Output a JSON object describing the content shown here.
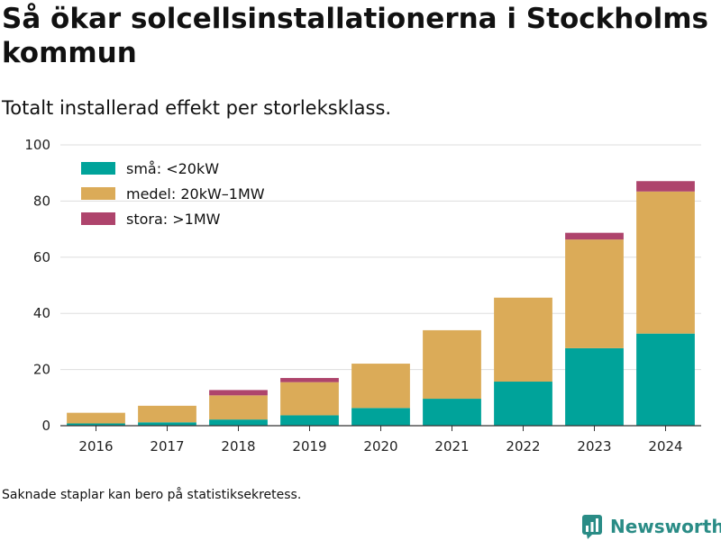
{
  "title": "Så ökar solcellsinstallationerna i Stockholms kommun",
  "subtitle": "Totalt installerad effekt per storleksklass.",
  "footnote": "Saknade staplar kan bero på statistiksekretess.",
  "brand": {
    "name": "Newsworthy",
    "icon": "newsworthy-logo-icon"
  },
  "colors": {
    "sma": "#00a39a",
    "medel": "#dbab58",
    "stora": "#ae446c",
    "grid": "#dddddd",
    "axis": "#333333"
  },
  "chart_data": {
    "type": "bar",
    "stacked": true,
    "categories": [
      "2016",
      "2017",
      "2018",
      "2019",
      "2020",
      "2021",
      "2022",
      "2023",
      "2024"
    ],
    "series": [
      {
        "name": "små: <20kW",
        "color": "#00a39a",
        "values": [
          0.8,
          1.2,
          2.2,
          3.7,
          6.3,
          9.6,
          15.7,
          27.6,
          32.8
        ]
      },
      {
        "name": "medel: 20kW–1MW",
        "color": "#dbab58",
        "values": [
          3.8,
          5.9,
          8.6,
          11.8,
          15.8,
          24.4,
          29.9,
          38.7,
          50.6
        ]
      },
      {
        "name": "stora: >1MW",
        "color": "#ae446c",
        "values": [
          0,
          0,
          1.9,
          1.5,
          0,
          0,
          0,
          2.4,
          3.7
        ]
      }
    ],
    "ylim": [
      0,
      100
    ],
    "yticks": [
      "0",
      "20",
      "40",
      "60",
      "80",
      "100"
    ],
    "xlabel": "",
    "ylabel": "",
    "grid": true,
    "legend_position": "top-left"
  }
}
